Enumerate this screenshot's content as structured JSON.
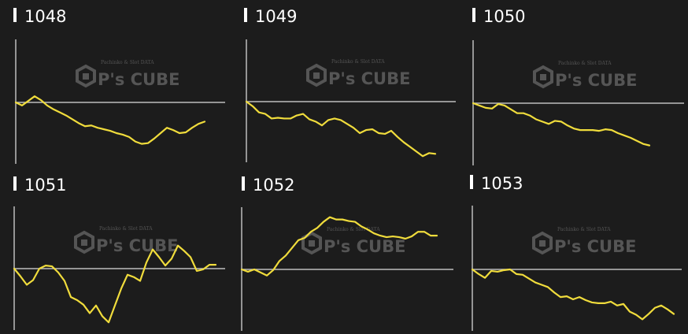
{
  "colors": {
    "background": "#1c1c1c",
    "line": "#f0dc3c",
    "axis": "#bdbdbd",
    "title": "#ffffff",
    "watermark": "#555555"
  },
  "watermark": {
    "brand": "P's CUBE",
    "tagline": "Pachinko & Slot DATA",
    "icon": "cube-hexagon-logo"
  },
  "chart_data": [
    {
      "type": "line",
      "title": "1048",
      "ylim": [
        -80,
        80
      ],
      "xlim": [
        0,
        33
      ],
      "grid": false,
      "values": [
        0,
        -4,
        2,
        8,
        3,
        -4,
        -9,
        -13,
        -17,
        -22,
        -27,
        -31,
        -30,
        -33,
        -35,
        -37,
        -40,
        -42,
        -45,
        -51,
        -54,
        -53,
        -47,
        -40,
        -33,
        -36,
        -40,
        -39,
        -33,
        -28,
        -25
      ]
    },
    {
      "type": "line",
      "title": "1049",
      "ylim": [
        -80,
        80
      ],
      "xlim": [
        0,
        33
      ],
      "grid": false,
      "values": [
        0,
        -6,
        -14,
        -16,
        -22,
        -21,
        -22,
        -22,
        -18,
        -16,
        -23,
        -26,
        -31,
        -24,
        -22,
        -24,
        -29,
        -34,
        -41,
        -37,
        -36,
        -41,
        -42,
        -38,
        -46,
        -53,
        -59,
        -65,
        -71,
        -67,
        -68
      ]
    },
    {
      "type": "line",
      "title": "1050",
      "ylim": [
        -80,
        80
      ],
      "xlim": [
        0,
        33
      ],
      "grid": false,
      "values": [
        0,
        -3,
        -6,
        -7,
        -1,
        -3,
        -8,
        -13,
        -13,
        -16,
        -21,
        -24,
        -27,
        -23,
        -24,
        -29,
        -33,
        -35,
        -35,
        -35,
        -36,
        -34,
        -35,
        -39,
        -42,
        -45,
        -49,
        -53,
        -55
      ]
    },
    {
      "type": "line",
      "title": "1051",
      "ylim": [
        -80,
        80
      ],
      "xlim": [
        0,
        33
      ],
      "grid": false,
      "values": [
        0,
        -10,
        -21,
        -15,
        0,
        4,
        3,
        -5,
        -16,
        -37,
        -41,
        -47,
        -58,
        -48,
        -62,
        -70,
        -48,
        -26,
        -8,
        -11,
        -16,
        8,
        25,
        15,
        4,
        13,
        30,
        23,
        15,
        -3,
        -1,
        5,
        5
      ]
    },
    {
      "type": "line",
      "title": "1052",
      "ylim": [
        -80,
        80
      ],
      "xlim": [
        0,
        33
      ],
      "grid": false,
      "values": [
        0,
        -3,
        0,
        -4,
        -8,
        -1,
        11,
        18,
        28,
        38,
        41,
        49,
        54,
        62,
        68,
        65,
        65,
        63,
        62,
        56,
        52,
        47,
        44,
        42,
        43,
        42,
        40,
        43,
        49,
        49,
        44,
        44
      ]
    },
    {
      "type": "line",
      "title": "1053",
      "ylim": [
        -80,
        80
      ],
      "xlim": [
        0,
        33
      ],
      "grid": false,
      "values": [
        0,
        -6,
        -11,
        -2,
        -3,
        -1,
        0,
        -6,
        -7,
        -12,
        -17,
        -20,
        -23,
        -30,
        -36,
        -35,
        -39,
        -36,
        -40,
        -43,
        -44,
        -44,
        -42,
        -47,
        -45,
        -55,
        -59,
        -65,
        -58,
        -50,
        -47,
        -52,
        -58
      ]
    }
  ]
}
